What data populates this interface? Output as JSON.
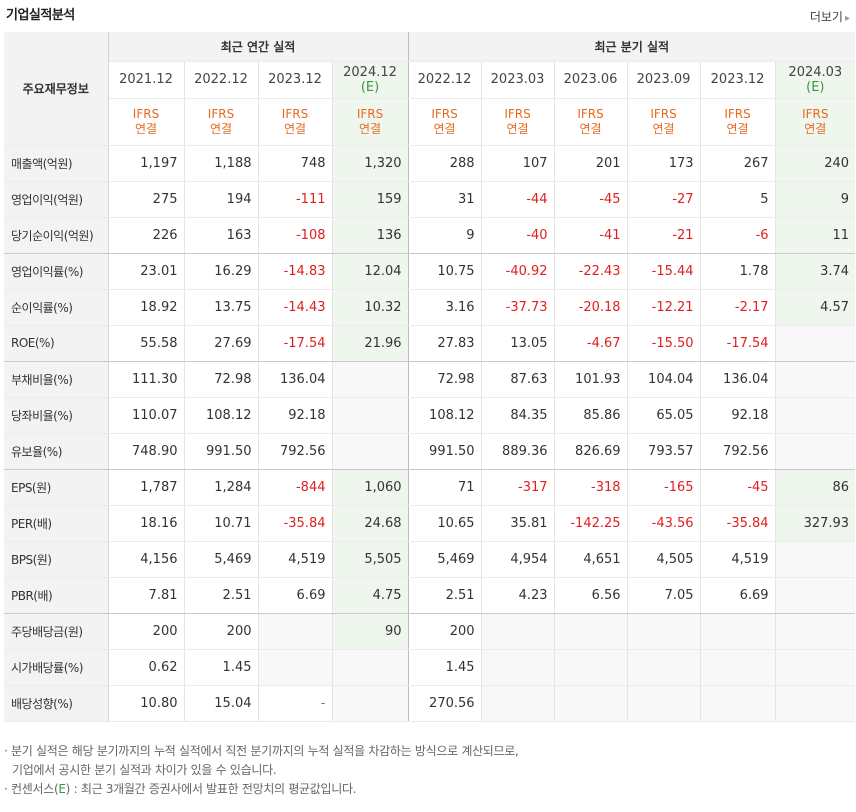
{
  "header": {
    "title": "기업실적분석",
    "more_label": "더보기"
  },
  "table": {
    "label_header": "주요재무정보",
    "group_annual": "최근 연간 실적",
    "group_quarterly": "최근 분기 실적",
    "periods": [
      {
        "name": "2021.12",
        "est": ""
      },
      {
        "name": "2022.12",
        "est": ""
      },
      {
        "name": "2023.12",
        "est": ""
      },
      {
        "name": "2024.12",
        "est": "(E)"
      },
      {
        "name": "2022.12",
        "est": ""
      },
      {
        "name": "2023.03",
        "est": ""
      },
      {
        "name": "2023.06",
        "est": ""
      },
      {
        "name": "2023.09",
        "est": ""
      },
      {
        "name": "2023.12",
        "est": ""
      },
      {
        "name": "2024.03",
        "est": "(E)"
      }
    ],
    "ifrs_top": "IFRS",
    "ifrs_bottom": "연결",
    "rows": [
      {
        "label": "매출액(억원)",
        "values": [
          "1,197",
          "1,188",
          "748",
          "1,320",
          "288",
          "107",
          "201",
          "173",
          "267",
          "240"
        ]
      },
      {
        "label": "영업이익(억원)",
        "values": [
          "275",
          "194",
          "-111",
          "159",
          "31",
          "-44",
          "-45",
          "-27",
          "5",
          "9"
        ]
      },
      {
        "label": "당기순이익(억원)",
        "values": [
          "226",
          "163",
          "-108",
          "136",
          "9",
          "-40",
          "-41",
          "-21",
          "-6",
          "11"
        ]
      },
      {
        "label": "영업이익률(%)",
        "values": [
          "23.01",
          "16.29",
          "-14.83",
          "12.04",
          "10.75",
          "-40.92",
          "-22.43",
          "-15.44",
          "1.78",
          "3.74"
        ]
      },
      {
        "label": "순이익률(%)",
        "values": [
          "18.92",
          "13.75",
          "-14.43",
          "10.32",
          "3.16",
          "-37.73",
          "-20.18",
          "-12.21",
          "-2.17",
          "4.57"
        ]
      },
      {
        "label": "ROE(%)",
        "values": [
          "55.58",
          "27.69",
          "-17.54",
          "21.96",
          "27.83",
          "13.05",
          "-4.67",
          "-15.50",
          "-17.54",
          ""
        ]
      },
      {
        "label": "부채비율(%)",
        "values": [
          "111.30",
          "72.98",
          "136.04",
          "",
          "72.98",
          "87.63",
          "101.93",
          "104.04",
          "136.04",
          ""
        ]
      },
      {
        "label": "당좌비율(%)",
        "values": [
          "110.07",
          "108.12",
          "92.18",
          "",
          "108.12",
          "84.35",
          "85.86",
          "65.05",
          "92.18",
          ""
        ]
      },
      {
        "label": "유보율(%)",
        "values": [
          "748.90",
          "991.50",
          "792.56",
          "",
          "991.50",
          "889.36",
          "826.69",
          "793.57",
          "792.56",
          ""
        ]
      },
      {
        "label": "EPS(원)",
        "values": [
          "1,787",
          "1,284",
          "-844",
          "1,060",
          "71",
          "-317",
          "-318",
          "-165",
          "-45",
          "86"
        ]
      },
      {
        "label": "PER(배)",
        "values": [
          "18.16",
          "10.71",
          "-35.84",
          "24.68",
          "10.65",
          "35.81",
          "-142.25",
          "-43.56",
          "-35.84",
          "327.93"
        ]
      },
      {
        "label": "BPS(원)",
        "values": [
          "4,156",
          "5,469",
          "4,519",
          "5,505",
          "5,469",
          "4,954",
          "4,651",
          "4,505",
          "4,519",
          ""
        ]
      },
      {
        "label": "PBR(배)",
        "values": [
          "7.81",
          "2.51",
          "6.69",
          "4.75",
          "2.51",
          "4.23",
          "6.56",
          "7.05",
          "6.69",
          ""
        ]
      },
      {
        "label": "주당배당금(원)",
        "values": [
          "200",
          "200",
          "",
          "90",
          "200",
          "",
          "",
          "",
          "",
          ""
        ]
      },
      {
        "label": "시가배당률(%)",
        "values": [
          "0.62",
          "1.45",
          "",
          "",
          "1.45",
          "",
          "",
          "",
          "",
          ""
        ]
      },
      {
        "label": "배당성향(%)",
        "values": [
          "10.80",
          "15.04",
          "-",
          "",
          "270.56",
          "",
          "",
          "",
          "",
          ""
        ]
      }
    ],
    "group_breaks": [
      2,
      5,
      8,
      12
    ]
  },
  "notes": {
    "line1": "· 분기 실적은 해당 분기까지의 누적 실적에서 직전 분기까지의 누적 실적을 차감하는 방식으로 계산되므로,",
    "line2": "기업에서 공시한 분기 실적과 차이가 있을 수 있습니다.",
    "line3_pre": "· 컨센서스(",
    "line3_e": "E",
    "line3_post": ") : 최근 3개월간 증권사에서 발표한 전망치의 평균값입니다."
  },
  "colors": {
    "negative": "#e02020",
    "ifrs": "#e66a1f",
    "estimate": "#3a9a3a",
    "estimate_bg": "#eef6ee",
    "header_bg": "#f3f3f3"
  }
}
